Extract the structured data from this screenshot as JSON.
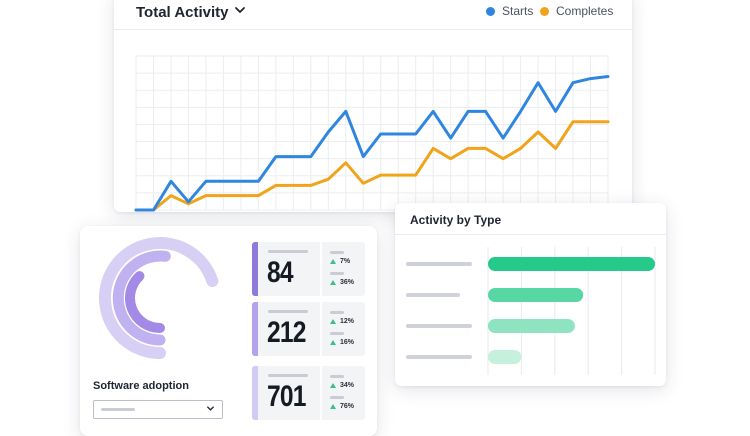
{
  "activity": {
    "title": "Total Activity",
    "legend": [
      {
        "name": "Starts",
        "color": "#2f86e0"
      },
      {
        "name": "Completes",
        "color": "#f0a31b"
      }
    ]
  },
  "chart_data": [
    {
      "type": "line",
      "title": "Total Activity",
      "x": [
        1,
        2,
        3,
        4,
        5,
        6,
        7,
        8,
        9,
        10,
        11,
        12,
        13,
        14,
        15,
        16,
        17,
        18,
        19,
        20,
        21,
        22,
        23,
        24,
        25,
        26,
        27,
        28
      ],
      "series": [
        {
          "name": "Starts",
          "color": "#2f86e0",
          "values": [
            0,
            0,
            28,
            8,
            28,
            28,
            28,
            28,
            52,
            52,
            52,
            76,
            96,
            52,
            74,
            74,
            74,
            96,
            70,
            96,
            96,
            70,
            96,
            124,
            96,
            124,
            128,
            130
          ]
        },
        {
          "name": "Completes",
          "color": "#f0a31b",
          "values": [
            0,
            0,
            14,
            6,
            14,
            14,
            14,
            14,
            24,
            24,
            24,
            30,
            46,
            26,
            34,
            34,
            34,
            60,
            50,
            60,
            60,
            50,
            60,
            76,
            60,
            86,
            86,
            86
          ]
        }
      ],
      "ylim": [
        0,
        150
      ],
      "grid": true,
      "legend_position": "top-right"
    },
    {
      "type": "bar",
      "title": "Activity by Type",
      "orientation": "horizontal",
      "values": [
        100,
        57,
        52,
        20
      ],
      "colors": [
        "#25c98a",
        "#58d7a4",
        "#8ee3c1",
        "#c6f0de"
      ],
      "xlim": [
        0,
        100
      ],
      "grid": true
    }
  ],
  "adoption": {
    "label": "Software adoption",
    "gauge": {
      "arcs": [
        {
          "color": "#d7cff4",
          "fraction": 0.7
        },
        {
          "color": "#c0b1f0",
          "fraction": 0.52
        },
        {
          "color": "#a28ae6",
          "fraction": 0.38
        }
      ]
    },
    "stats": [
      {
        "value": "84",
        "accent": "#8f7ad9",
        "up": "7%",
        "up2": "36%"
      },
      {
        "value": "212",
        "accent": "#b2a3ec",
        "up": "12%",
        "up2": "16%"
      },
      {
        "value": "701",
        "accent": "#d2c9f4",
        "up": "34%",
        "up2": "76%"
      }
    ]
  },
  "types": {
    "title": "Activity by Type"
  }
}
